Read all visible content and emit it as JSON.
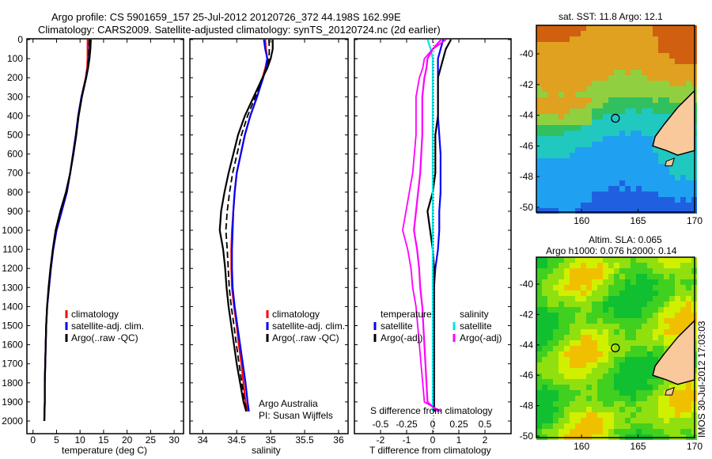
{
  "title_line1": "Argo profile: CS 5901659_157 25-Jul-2012 20120726_372 44.198S 162.99E",
  "title_line2": "Climatology: CARS2009. Satellite-adjusted climatology: synTS_20120724.nc (2d earlier)",
  "colors": {
    "clim": "#ff0000",
    "sat": "#0000ff",
    "argo": "#000000",
    "sat_s": "#00e5e5",
    "argo_s": "#ff00ff",
    "land": "#f9c89b"
  },
  "chart_data": [
    {
      "type": "line",
      "xlabel": "temperature (deg C)",
      "xticks": [
        0,
        5,
        10,
        15,
        20,
        25,
        30
      ],
      "xlim": [
        -1.3,
        32
      ],
      "ylim": [
        0,
        2060
      ],
      "yticks": [
        0,
        100,
        200,
        300,
        400,
        500,
        600,
        700,
        800,
        900,
        1000,
        1100,
        1200,
        1300,
        1400,
        1500,
        1600,
        1700,
        1800,
        1900,
        2000
      ],
      "depth": [
        0,
        50,
        100,
        150,
        200,
        300,
        400,
        500,
        600,
        700,
        800,
        900,
        1000,
        1100,
        1200,
        1300,
        1400,
        1500,
        1600,
        1700,
        1800,
        1900,
        2000
      ],
      "series": [
        {
          "name": "climatology",
          "color": "#ff0000",
          "values": [
            11.6,
            11.6,
            11.6,
            11.5,
            11.2,
            10.3,
            9.6,
            9.1,
            8.5,
            7.9,
            7.2,
            6.1,
            5.0,
            4.3,
            3.8,
            3.4,
            3.0,
            2.8,
            2.7,
            2.6,
            2.5,
            2.5,
            2.4
          ]
        },
        {
          "name": "satellite-adj. clim.",
          "color": "#0000ff",
          "values": [
            12.0,
            12.0,
            11.9,
            11.6,
            11.3,
            10.3,
            9.6,
            9.1,
            8.5,
            7.9,
            7.2,
            6.1,
            5.0,
            4.3,
            3.8,
            3.4,
            3.0,
            2.8,
            2.7,
            2.6,
            2.5,
            2.5,
            2.4
          ]
        },
        {
          "name": "Argo(..raw -QC)",
          "color": "#000000",
          "values": [
            12.3,
            12.2,
            12.0,
            11.7,
            11.3,
            10.4,
            9.7,
            9.2,
            8.6,
            7.9,
            7.0,
            5.8,
            4.8,
            4.2,
            3.7,
            3.3,
            3.0,
            2.8,
            2.7,
            2.6,
            2.5,
            2.5,
            2.4
          ]
        }
      ],
      "legend": [
        "climatology",
        "satellite-adj. clim.",
        "Argo(..raw -QC)"
      ]
    },
    {
      "type": "line",
      "xlabel": "salinity",
      "xticks": [
        34,
        34.5,
        35,
        35.5,
        36
      ],
      "xtick_labels": [
        "34",
        "34.5",
        "35",
        "35.5",
        "36"
      ],
      "xlim": [
        33.81,
        36.14
      ],
      "depth": [
        0,
        50,
        100,
        150,
        200,
        300,
        400,
        500,
        600,
        700,
        800,
        900,
        1000,
        1100,
        1200,
        1300,
        1400,
        1500,
        1600,
        1700,
        1800,
        1900,
        1950
      ],
      "series": [
        {
          "name": "climatology",
          "color": "#ff0000",
          "values": [
            34.92,
            34.93,
            34.95,
            34.92,
            34.88,
            34.8,
            34.7,
            34.62,
            34.56,
            34.5,
            34.47,
            34.45,
            34.43,
            34.42,
            34.42,
            34.43,
            34.46,
            34.5,
            34.53,
            34.57,
            34.6,
            34.63,
            34.66
          ]
        },
        {
          "name": "satellite-adj. clim.",
          "color": "#0000ff",
          "values": [
            34.9,
            34.92,
            34.95,
            34.93,
            34.89,
            34.8,
            34.7,
            34.62,
            34.56,
            34.5,
            34.47,
            34.45,
            34.44,
            34.43,
            34.43,
            34.44,
            34.47,
            34.51,
            34.55,
            34.59,
            34.63,
            34.66,
            34.68
          ]
        },
        {
          "name": "Argo(..raw -QC)",
          "color": "#000000",
          "values": [
            35.03,
            35.03,
            35.0,
            34.95,
            34.88,
            34.75,
            34.62,
            34.52,
            34.45,
            34.38,
            34.32,
            34.27,
            34.25,
            34.3,
            34.33,
            34.35,
            34.38,
            34.42,
            34.46,
            34.5,
            34.55,
            34.6,
            34.64
          ]
        }
      ],
      "legend": [
        "climatology",
        "satellite-adj. clim.",
        "Argo(..raw -QC)"
      ],
      "annotation": [
        "Argo Australia",
        "PI: Susan Wijffels"
      ]
    },
    {
      "type": "line",
      "xlabel": "T difference from climatology",
      "xticks": [
        -2,
        -1,
        0,
        1,
        2
      ],
      "xlim": [
        -3,
        3
      ],
      "x2label": "S difference from climatology",
      "x2ticks": [
        -0.5,
        -0.25,
        0,
        0.25,
        0.5
      ],
      "x2tick_labels": [
        "-0.5",
        "-0.25",
        "0",
        "0.25",
        "0.5"
      ],
      "depth": [
        0,
        50,
        100,
        150,
        200,
        300,
        400,
        500,
        600,
        700,
        800,
        900,
        1000,
        1100,
        1200,
        1300,
        1400,
        1500,
        1600,
        1700,
        1800,
        1900,
        1950
      ],
      "series": [
        {
          "name": "temperature satellite",
          "unit": "T",
          "color": "#0000ff",
          "values": [
            0.4,
            0.3,
            0.2,
            0.2,
            0.2,
            0.2,
            0.2,
            0.25,
            0.3,
            0.3,
            0.3,
            0.25,
            0.25,
            0.2,
            0.1,
            0.05,
            0.05,
            0.05,
            0.05,
            0.05,
            0.05,
            0.05,
            0.05
          ]
        },
        {
          "name": "temperature Argo(-adj)",
          "unit": "T",
          "color": "#000000",
          "values": [
            0.7,
            0.5,
            0.4,
            0.3,
            0.2,
            0.2,
            0.2,
            0.1,
            0.1,
            0.1,
            0.0,
            -0.2,
            -0.1,
            0.0,
            0.05,
            0.05,
            0.05,
            0.05,
            0.05,
            0.05,
            0.05,
            0.05,
            0.05
          ]
        },
        {
          "name": "salinity satellite",
          "unit": "S",
          "color": "#00e5e5",
          "values": [
            -0.05,
            -0.02,
            0,
            0,
            0,
            0,
            0,
            0,
            0,
            0,
            0,
            0,
            0,
            0,
            0,
            0,
            0,
            0,
            0,
            0,
            0,
            0,
            0
          ]
        },
        {
          "name": "salinity Argo(-adj)",
          "unit": "S",
          "color": "#ff00ff",
          "values": [
            0.08,
            0.0,
            -0.05,
            -0.06,
            -0.08,
            -0.1,
            -0.1,
            -0.1,
            -0.11,
            -0.12,
            -0.14,
            -0.16,
            -0.18,
            -0.15,
            -0.13,
            -0.12,
            -0.1,
            -0.09,
            -0.08,
            -0.07,
            -0.06,
            -0.05,
            0.05
          ]
        }
      ],
      "legend_temperature_title": "temperature",
      "legend_salinity_title": "salinity",
      "legend": [
        "satellite",
        "Argo(-adj)",
        "satellite",
        "Argo(-adj)"
      ]
    },
    {
      "type": "heatmap",
      "title": "sat. SST: 11.8 Argo: 12.1",
      "xticks": [
        160,
        165,
        170
      ],
      "yticks": [
        -40,
        -42,
        -44,
        -46,
        -48,
        -50
      ],
      "xlim": [
        156,
        170
      ],
      "ylim": [
        -50.2,
        -38.3
      ],
      "marker": {
        "lon": 162.99,
        "lat": -44.198
      }
    },
    {
      "type": "heatmap",
      "title_line1": "Altim. SLA: 0.065",
      "title_line2": "Argo h1000: 0.076 h2000: 0.14",
      "xticks": [
        160,
        165,
        170
      ],
      "yticks": [
        -40,
        -42,
        -44,
        -46,
        -48,
        -50
      ],
      "xlim": [
        156,
        170
      ],
      "ylim": [
        -50.2,
        -38.3
      ],
      "marker": {
        "lon": 162.99,
        "lat": -44.198
      }
    }
  ],
  "ylabels": [
    "0",
    "100",
    "200",
    "300",
    "400",
    "500",
    "600",
    "700",
    "800",
    "900",
    "1000",
    "1100",
    "1200",
    "1300",
    "1400",
    "1500",
    "1600",
    "1700",
    "1800",
    "1900",
    "2000"
  ],
  "timestamp": "IMOS 30-Jul-2012 17:03:03"
}
